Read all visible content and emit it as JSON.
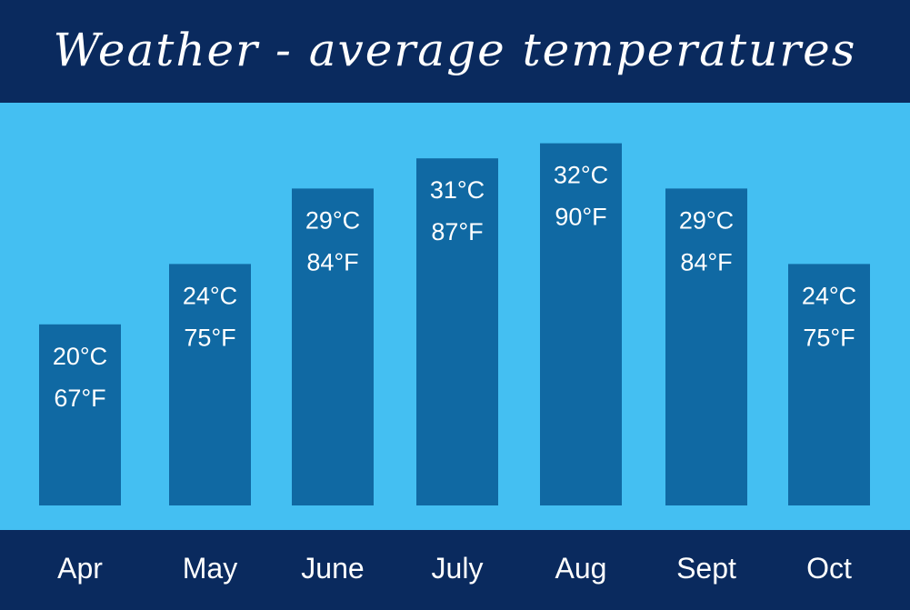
{
  "title": "Weather - average temperatures",
  "colors": {
    "background_band": "#44bff2",
    "bar": "#1069a3",
    "header": "#0a2a5e",
    "text": "#ffffff"
  },
  "chart_data": {
    "type": "bar",
    "title": "Weather - average temperatures",
    "xlabel": "",
    "ylabel": "",
    "grid": false,
    "legend": "none",
    "categories": [
      "Apr",
      "May",
      "June",
      "July",
      "Aug",
      "Sept",
      "Oct"
    ],
    "series": [
      {
        "values": [
          20,
          24,
          29,
          31,
          32,
          29,
          24
        ]
      }
    ],
    "data_labels_c": [
      "20°C",
      "24°C",
      "29°C",
      "31°C",
      "32°C",
      "29°C",
      "24°C"
    ],
    "data_labels_f": [
      "67°F",
      "75°F",
      "84°F",
      "87°F",
      "90°F",
      "84°F",
      "75°F"
    ],
    "ylim": [
      8,
      33
    ]
  }
}
